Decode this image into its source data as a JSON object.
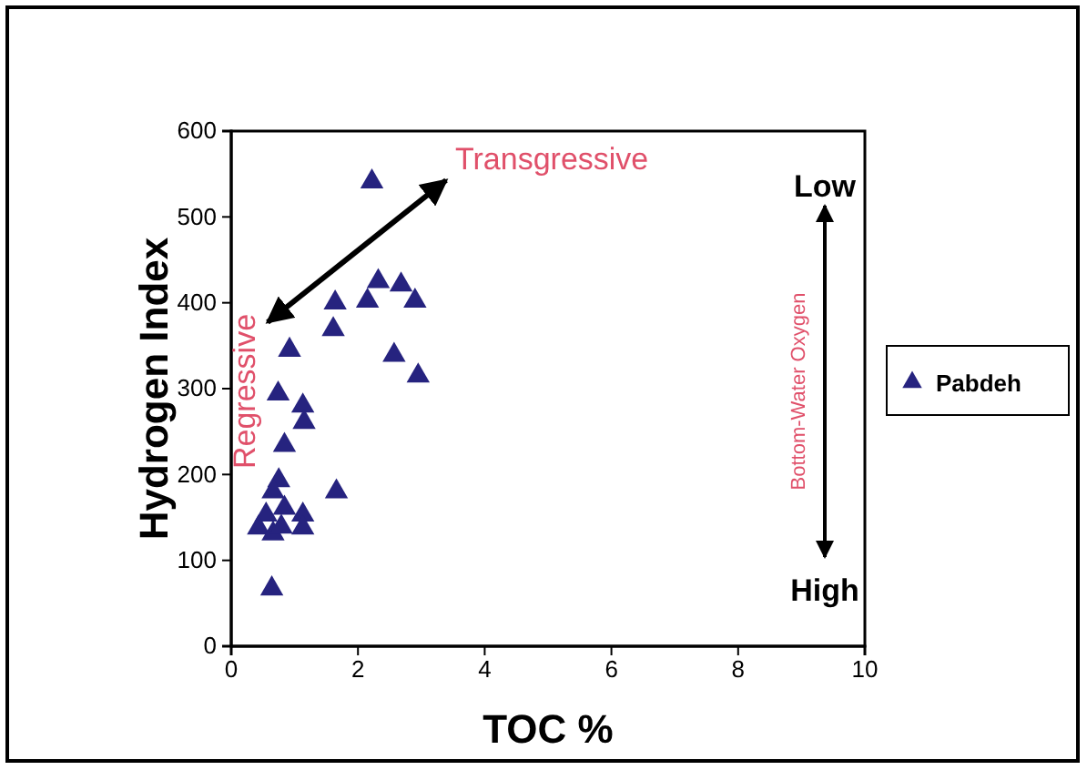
{
  "chart_data": {
    "type": "scatter",
    "xlabel": "TOC %",
    "ylabel": "Hydrogen Index",
    "xlim": [
      0,
      10
    ],
    "xticks": [
      0,
      2,
      4,
      6,
      8,
      10
    ],
    "ylim": [
      0,
      600
    ],
    "yticks": [
      0,
      100,
      200,
      300,
      400,
      500,
      600
    ],
    "x": [
      2.22,
      2.32,
      2.68,
      2.9,
      2.15,
      1.64,
      1.61,
      2.57,
      2.95,
      0.92,
      0.74,
      1.13,
      1.15,
      0.84,
      0.75,
      0.66,
      1.66,
      0.84,
      0.55,
      1.13,
      1.13,
      0.43,
      0.66,
      0.79,
      0.64
    ],
    "series": [
      {
        "name": "Pabdeh",
        "color": "#26237f",
        "values": [
          541,
          425,
          421,
          402,
          402,
          400,
          369,
          339,
          315,
          345,
          294,
          280,
          261,
          234,
          193,
          180,
          180,
          161,
          153,
          153,
          138,
          138,
          131,
          139,
          67
        ]
      }
    ],
    "marker": "triangle",
    "grid": false,
    "legend": "right",
    "annotations": [
      "Transgressive",
      "Regressive",
      "Low",
      "High",
      "Bottom-Water Oxygen"
    ]
  }
}
